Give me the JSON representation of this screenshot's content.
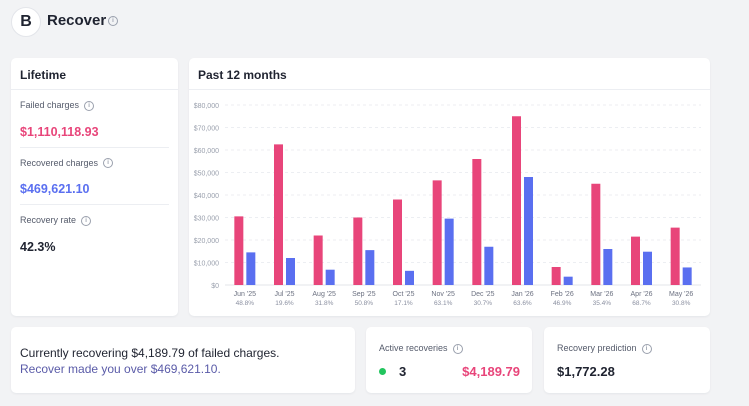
{
  "header": {
    "logo_letter": "B",
    "title": "Recover",
    "info_icon": "info-icon"
  },
  "lifetime": {
    "title": "Lifetime",
    "stats": [
      {
        "label": "Failed charges",
        "value": "$1,110,118.93",
        "color": "#e8457a"
      },
      {
        "label": "Recovered charges",
        "value": "$469,621.10",
        "color": "#5a6ff0"
      },
      {
        "label": "Recovery rate",
        "value": "42.3%",
        "color": "#1f2330"
      }
    ]
  },
  "chart_card": {
    "title": "Past 12 months"
  },
  "chart_data": {
    "type": "bar",
    "categories": [
      "Jun '25",
      "Jul '25",
      "Aug '25",
      "Sep '25",
      "Oct '25",
      "Nov '25",
      "Dec '25",
      "Jan '26",
      "Feb '26",
      "Mar '26",
      "Apr '26",
      "May '26"
    ],
    "rates": [
      "48.8%",
      "19.6%",
      "31.8%",
      "50.8%",
      "17.1%",
      "63.1%",
      "30.7%",
      "63.6%",
      "46.9%",
      "35.4%",
      "68.7%",
      "30.8%"
    ],
    "series": [
      {
        "values": [
          30500,
          62500,
          22000,
          30000,
          38000,
          46500,
          56000,
          75000,
          8000,
          45000,
          21500,
          25500
        ],
        "color": "#e8457a"
      },
      {
        "values": [
          14500,
          12000,
          6800,
          15500,
          6300,
          29500,
          17000,
          48000,
          3700,
          16000,
          14800,
          7800
        ],
        "color": "#5a6ff0"
      }
    ],
    "yticks": [
      "$0",
      "$10,000",
      "$20,000",
      "$30,000",
      "$40,000",
      "$50,000",
      "$60,000",
      "$70,000",
      "$80,000"
    ],
    "ylim": [
      0,
      80000
    ],
    "grid": true
  },
  "recovering": {
    "line1": "Currently recovering $4,189.79 of failed charges.",
    "line2": "Recover made you over $469,621.10."
  },
  "active": {
    "label": "Active recoveries",
    "count": "3",
    "amount": "$4,189.79",
    "dot_color": "#22c55e"
  },
  "prediction": {
    "label": "Recovery prediction",
    "value": "$1,772.28"
  }
}
